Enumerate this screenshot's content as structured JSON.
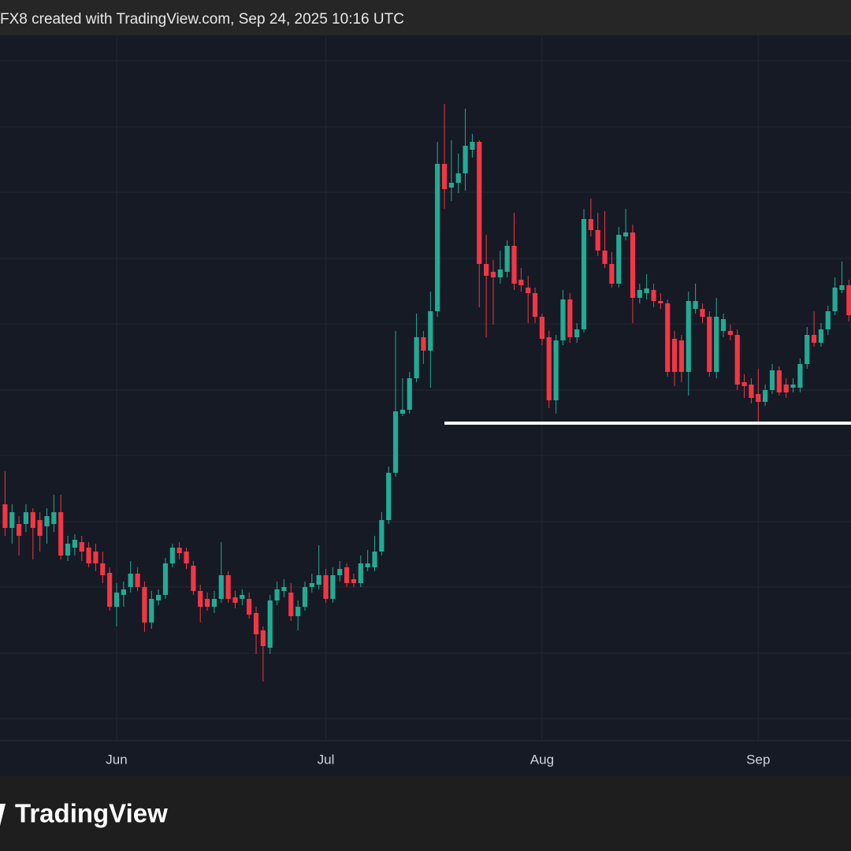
{
  "header": "FX8 created with TradingView.com, Sep 24, 2025 10:16 UTC",
  "logo": "TradingView",
  "chart_data": {
    "type": "candlestick",
    "up_color": "#22ab94",
    "down_color": "#f23645",
    "grid": true,
    "xlim": [
      -0.723,
      121.3
    ],
    "xticks": [
      {
        "value": 16,
        "label": "Jun"
      },
      {
        "value": 46,
        "label": "Jul"
      },
      {
        "value": 77,
        "label": "Aug"
      },
      {
        "value": 108,
        "label": "Sep"
      }
    ],
    "ylim": [
      60,
      955
    ],
    "yticks": [
      88,
      171,
      255,
      338,
      422,
      505,
      589,
      672,
      756,
      839,
      923
    ],
    "level_line": {
      "value": 463,
      "start": 63,
      "color": "#ffffff"
    },
    "open": [
      360,
      330,
      335,
      335,
      350,
      340,
      332,
      335,
      350,
      295,
      305,
      312,
      305,
      300,
      285,
      273,
      230,
      245,
      255,
      272,
      255,
      210,
      238,
      245,
      285,
      305,
      300,
      282,
      250,
      240,
      230,
      240,
      270,
      242,
      240,
      240,
      222,
      200,
      178,
      238,
      250,
      248,
      218,
      230,
      255,
      258,
      270,
      240,
      270,
      280,
      265,
      260,
      280,
      280,
      300,
      340,
      400,
      475,
      480,
      520,
      572,
      555,
      605,
      792,
      762,
      768,
      780,
      810,
      820,
      665,
      655,
      648,
      655,
      688,
      645,
      635,
      628,
      598,
      572,
      492,
      568,
      620,
      572,
      582,
      722,
      708,
      682,
      665,
      640,
      700,
      705,
      622,
      628,
      632,
      618,
      615,
      570,
      568,
      528,
      608,
      608,
      598,
      528,
      580,
      580,
      575,
      515,
      512,
      500,
      490,
      505,
      530,
      512,
      508,
      508,
      538,
      575,
      565,
      582,
      605,
      632,
      638
    ],
    "high": [
      402,
      360,
      345,
      360,
      355,
      350,
      355,
      372,
      372,
      320,
      322,
      320,
      312,
      310,
      300,
      280,
      260,
      262,
      288,
      280,
      262,
      250,
      252,
      292,
      310,
      312,
      305,
      288,
      258,
      248,
      250,
      312,
      275,
      250,
      252,
      248,
      230,
      205,
      245,
      262,
      265,
      260,
      238,
      262,
      272,
      308,
      278,
      280,
      288,
      285,
      272,
      295,
      302,
      320,
      350,
      408,
      580,
      520,
      528,
      602,
      580,
      630,
      820,
      868,
      822,
      805,
      862,
      830,
      822,
      702,
      670,
      682,
      695,
      730,
      660,
      650,
      635,
      602,
      580,
      575,
      632,
      628,
      590,
      735,
      748,
      730,
      732,
      680,
      712,
      735,
      715,
      640,
      652,
      640,
      628,
      620,
      580,
      575,
      630,
      640,
      615,
      605,
      622,
      602,
      588,
      582,
      525,
      520,
      532,
      512,
      538,
      535,
      520,
      520,
      545,
      585,
      605,
      590,
      612,
      648,
      668,
      645
    ],
    "low": [
      320,
      310,
      295,
      325,
      290,
      300,
      310,
      325,
      290,
      288,
      295,
      288,
      280,
      275,
      260,
      225,
      205,
      230,
      248,
      250,
      198,
      202,
      232,
      240,
      280,
      290,
      278,
      245,
      210,
      225,
      222,
      235,
      235,
      228,
      232,
      215,
      170,
      135,
      170,
      232,
      242,
      212,
      200,
      225,
      248,
      252,
      235,
      235,
      262,
      255,
      255,
      255,
      275,
      275,
      295,
      335,
      395,
      472,
      475,
      515,
      538,
      508,
      598,
      735,
      745,
      755,
      758,
      800,
      610,
      572,
      588,
      640,
      648,
      632,
      630,
      590,
      590,
      562,
      482,
      475,
      562,
      565,
      565,
      578,
      700,
      675,
      660,
      635,
      635,
      695,
      590,
      615,
      620,
      610,
      608,
      522,
      510,
      515,
      498,
      602,
      590,
      522,
      520,
      572,
      568,
      505,
      495,
      488,
      463,
      485,
      500,
      498,
      495,
      502,
      502,
      532,
      560,
      560,
      575,
      600,
      628,
      592
    ],
    "close": [
      330,
      350,
      320,
      350,
      330,
      320,
      345,
      350,
      295,
      310,
      315,
      300,
      285,
      285,
      270,
      230,
      248,
      252,
      272,
      255,
      210,
      240,
      245,
      285,
      305,
      298,
      285,
      250,
      230,
      230,
      240,
      270,
      240,
      235,
      245,
      220,
      195,
      180,
      238,
      252,
      255,
      218,
      230,
      255,
      260,
      270,
      240,
      270,
      278,
      260,
      260,
      285,
      285,
      300,
      340,
      400,
      478,
      480,
      520,
      572,
      555,
      605,
      792,
      760,
      768,
      780,
      815,
      820,
      665,
      650,
      648,
      658,
      688,
      640,
      638,
      628,
      598,
      570,
      492,
      568,
      620,
      572,
      582,
      722,
      708,
      682,
      665,
      640,
      702,
      705,
      622,
      632,
      634,
      618,
      615,
      528,
      528,
      528,
      618,
      618,
      598,
      528,
      598,
      595,
      575,
      512,
      510,
      495,
      490,
      505,
      530,
      502,
      502,
      512,
      538,
      575,
      565,
      582,
      605,
      635,
      638,
      600
    ]
  }
}
